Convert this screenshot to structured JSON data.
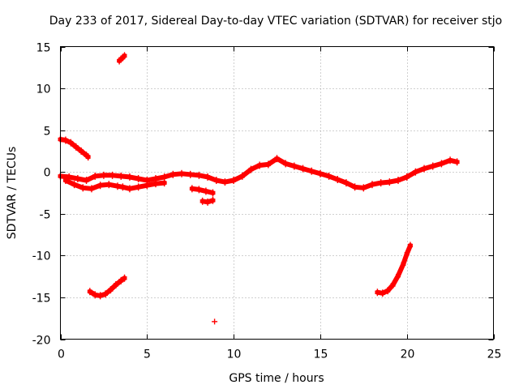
{
  "chart_data": {
    "type": "scatter",
    "title": "Day 233 of 2017, Sidereal Day-to-day VTEC variation (SDTVAR) for receiver stjo",
    "xlabel": "GPS time / hours",
    "ylabel": "SDTVAR / TECUs",
    "xlim": [
      0,
      25
    ],
    "ylim": [
      -20,
      15
    ],
    "xticks": [
      0,
      5,
      10,
      15,
      20,
      25
    ],
    "yticks": [
      -20,
      -15,
      -10,
      -5,
      0,
      5,
      10,
      15
    ],
    "grid": true,
    "color": "#ff0000",
    "marker": "+",
    "series": [
      {
        "name": "main-upper",
        "x": [
          0,
          0.5,
          1.0,
          1.5,
          2.0,
          2.5,
          3.0,
          3.5,
          4.0,
          4.5,
          5.0,
          5.5,
          6.0,
          6.5,
          7.0,
          7.5,
          8.0,
          8.5,
          9.0,
          9.5,
          10.0,
          10.5,
          11.0,
          11.5,
          12.0,
          12.5,
          13.0,
          13.5,
          14.0,
          14.5,
          15.0,
          15.5,
          16.0,
          16.5,
          17.0,
          17.5,
          18.0,
          18.5,
          19.0,
          19.5,
          20.0,
          20.5,
          21.0,
          21.5,
          22.0,
          22.5,
          22.9
        ],
        "y": [
          -0.5,
          -0.6,
          -0.8,
          -1.0,
          -0.5,
          -0.4,
          -0.4,
          -0.5,
          -0.6,
          -0.8,
          -1.0,
          -0.8,
          -0.6,
          -0.3,
          -0.2,
          -0.3,
          -0.4,
          -0.6,
          -1.0,
          -1.2,
          -1.0,
          -0.5,
          0.3,
          0.8,
          0.9,
          1.6,
          1.0,
          0.7,
          0.4,
          0.1,
          -0.2,
          -0.5,
          -0.9,
          -1.3,
          -1.8,
          -1.9,
          -1.5,
          -1.3,
          -1.2,
          -1.0,
          -0.6,
          0.0,
          0.4,
          0.7,
          1.0,
          1.4,
          1.2
        ]
      },
      {
        "name": "main-lower",
        "x": [
          0.3,
          0.8,
          1.3,
          1.8,
          2.3,
          2.8,
          3.3,
          3.6,
          4.0,
          4.5,
          5.0,
          5.5,
          6.0
        ],
        "y": [
          -1.0,
          -1.5,
          -1.9,
          -2.0,
          -1.6,
          -1.5,
          -1.7,
          -1.8,
          -2.0,
          -1.8,
          -1.6,
          -1.4,
          -1.3
        ]
      },
      {
        "name": "early-descent",
        "x": [
          0.0,
          0.3,
          0.6,
          0.9,
          1.2,
          1.5,
          1.6
        ],
        "y": [
          3.9,
          3.8,
          3.5,
          3.0,
          2.5,
          2.0,
          1.8
        ]
      },
      {
        "name": "segment-8h",
        "x": [
          7.6,
          8.0,
          8.4,
          8.8
        ],
        "y": [
          -2.0,
          -2.1,
          -2.3,
          -2.5
        ]
      },
      {
        "name": "segment-8h-low",
        "x": [
          8.2,
          8.5,
          8.8
        ],
        "y": [
          -3.5,
          -3.6,
          -3.4
        ]
      },
      {
        "name": "outlier-high",
        "x": [
          3.4,
          3.5,
          3.6,
          3.7
        ],
        "y": [
          13.3,
          13.5,
          13.7,
          13.9
        ]
      },
      {
        "name": "outlier-low",
        "x": [
          8.9
        ],
        "y": [
          -17.9
        ]
      },
      {
        "name": "arc-early",
        "x": [
          1.7,
          2.0,
          2.3,
          2.6,
          2.9,
          3.2,
          3.5,
          3.7
        ],
        "y": [
          -14.3,
          -14.7,
          -14.8,
          -14.6,
          -14.1,
          -13.5,
          -13.0,
          -12.7
        ]
      },
      {
        "name": "arc-late",
        "x": [
          18.3,
          18.6,
          18.9,
          19.2,
          19.5,
          19.8,
          20.0,
          20.2
        ],
        "y": [
          -14.4,
          -14.5,
          -14.2,
          -13.5,
          -12.4,
          -11.0,
          -9.8,
          -8.8
        ]
      }
    ]
  }
}
